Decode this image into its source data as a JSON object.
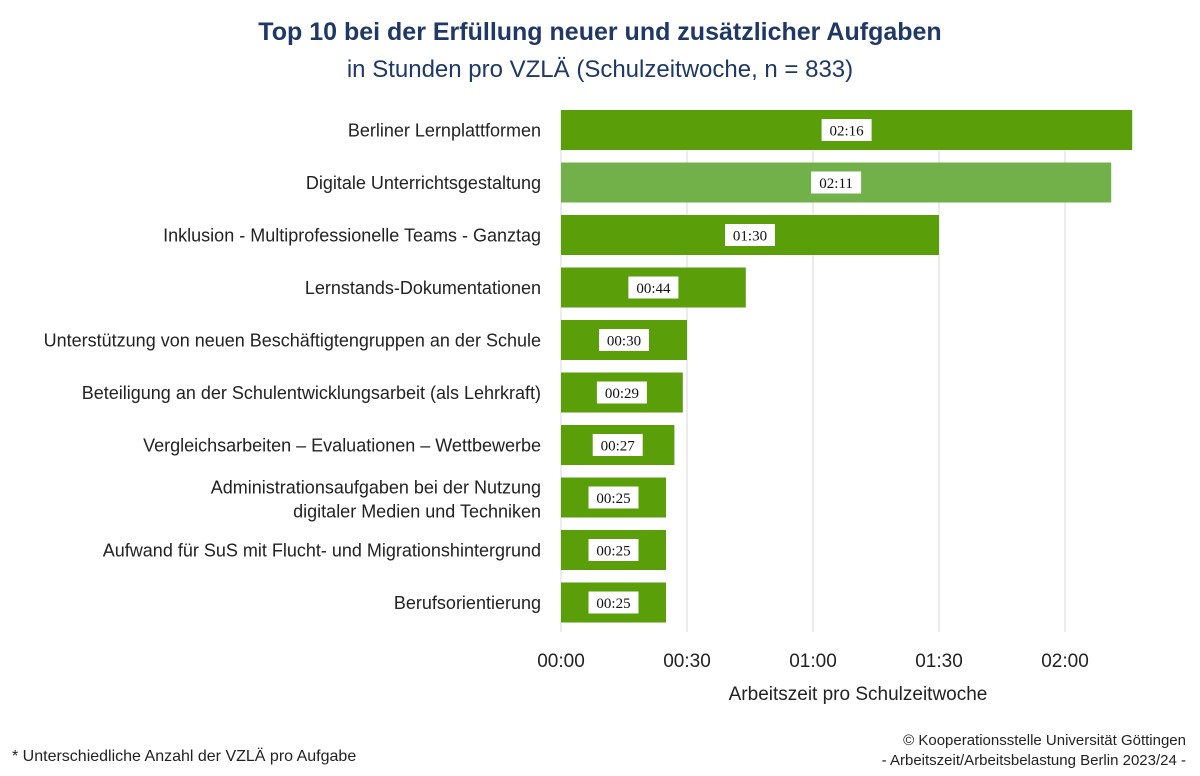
{
  "header": {
    "title": "Top 10 bei der Erfüllung neuer und zusätzlicher Aufgaben",
    "subtitle": "in Stunden pro VZLÄ (Schulzeitwoche, n = 833)"
  },
  "footer": {
    "footnote": "*   Unterschiedliche Anzahl der VZLÄ pro Aufgabe",
    "credit_line1": "© Kooperationsstelle Universität Göttingen",
    "credit_line2": "- Arbeitszeit/Arbeitsbelastung Berlin 2023/24 -"
  },
  "colors": {
    "bar": "#5a9e0a",
    "bar_highlight": "#72b04a",
    "grid": "#d9d9d9",
    "title": "#1f3864"
  },
  "chart_data": {
    "type": "bar",
    "orientation": "horizontal",
    "categories": [
      [
        "Berliner Lernplattformen"
      ],
      [
        "Digitale Unterrichtsgestaltung"
      ],
      [
        "Inklusion - Multiprofessionelle Teams - Ganztag"
      ],
      [
        "Lernstands-Dokumentationen"
      ],
      [
        "Unterstützung von neuen Beschäftigtengruppen an der Schule"
      ],
      [
        "Beteiligung an der Schulentwicklungsarbeit (als Lehrkraft)"
      ],
      [
        "Vergleichsarbeiten – Evaluationen – Wettbewerbe"
      ],
      [
        "Administrationsaufgaben bei der Nutzung",
        "digitaler Medien und Techniken"
      ],
      [
        "Aufwand für SuS mit Flucht- und Migrationshintergrund"
      ],
      [
        "Berufsorientierung"
      ]
    ],
    "values_minutes": [
      136,
      131,
      90,
      44,
      30,
      29,
      27,
      25,
      25,
      25
    ],
    "data_labels": [
      "02:16",
      "02:11",
      "01:30",
      "00:44",
      "00:30",
      "00:29",
      "00:27",
      "00:25",
      "00:25",
      "00:25"
    ],
    "highlight_index": 1,
    "xlabel": "Arbeitszeit pro Schulzeitwoche",
    "xlim_minutes": [
      0,
      135
    ],
    "xticks_minutes": [
      0,
      30,
      60,
      90,
      120
    ],
    "xtick_labels": [
      "00:00",
      "00:30",
      "01:00",
      "01:30",
      "02:00"
    ],
    "grid": "vertical"
  }
}
